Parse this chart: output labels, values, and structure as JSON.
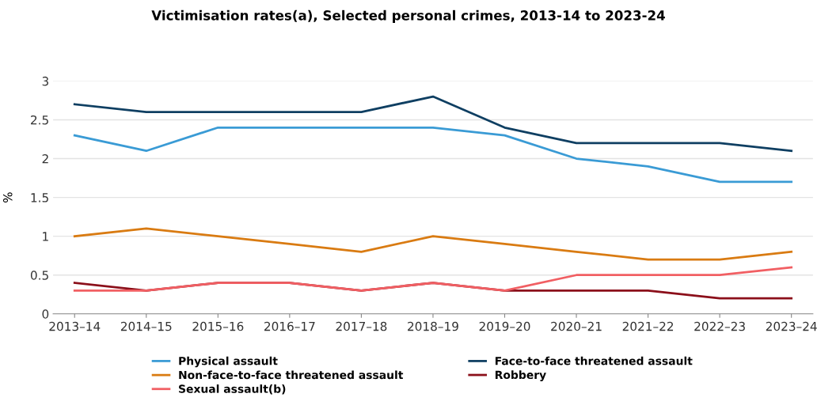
{
  "chart_data": {
    "type": "line",
    "title": "Victimisation rates(a), Selected personal crimes, 2013-14 to 2023-24",
    "ylabel": "%",
    "categories": [
      "2013–14",
      "2014–15",
      "2015–16",
      "2016–17",
      "2017–18",
      "2018–19",
      "2019–20",
      "2020–21",
      "2021–22",
      "2022–23",
      "2023–24"
    ],
    "series": [
      {
        "name": "Physical assault",
        "color": "#3a9bd5",
        "values": [
          2.3,
          2.1,
          2.4,
          2.4,
          2.4,
          2.4,
          2.3,
          2.0,
          1.9,
          1.7,
          1.7
        ]
      },
      {
        "name": "Face-to-face threatened assault",
        "color": "#0f3f62",
        "values": [
          2.7,
          2.6,
          2.6,
          2.6,
          2.6,
          2.8,
          2.4,
          2.2,
          2.2,
          2.2,
          2.1
        ]
      },
      {
        "name": "Non-face-to-face threatened assault",
        "color": "#d97b12",
        "values": [
          1.0,
          1.1,
          1.0,
          0.9,
          0.8,
          1.0,
          0.9,
          0.8,
          0.7,
          0.7,
          0.8
        ]
      },
      {
        "name": "Robbery",
        "color": "#8b0f1a",
        "values": [
          0.4,
          0.3,
          0.4,
          0.4,
          0.3,
          0.4,
          0.3,
          0.3,
          0.3,
          0.2,
          0.2
        ]
      },
      {
        "name": "Sexual assault(b)",
        "color": "#f15f63",
        "values": [
          0.3,
          0.3,
          0.4,
          0.4,
          0.3,
          0.4,
          0.3,
          0.5,
          0.5,
          0.5,
          0.6
        ]
      }
    ],
    "ylim": [
      0,
      3
    ],
    "yticks": [
      0,
      0.5,
      1,
      1.5,
      2,
      2.5,
      3
    ],
    "grid": "y",
    "legend": "bottom",
    "marker": "none",
    "line_style": "solid"
  }
}
